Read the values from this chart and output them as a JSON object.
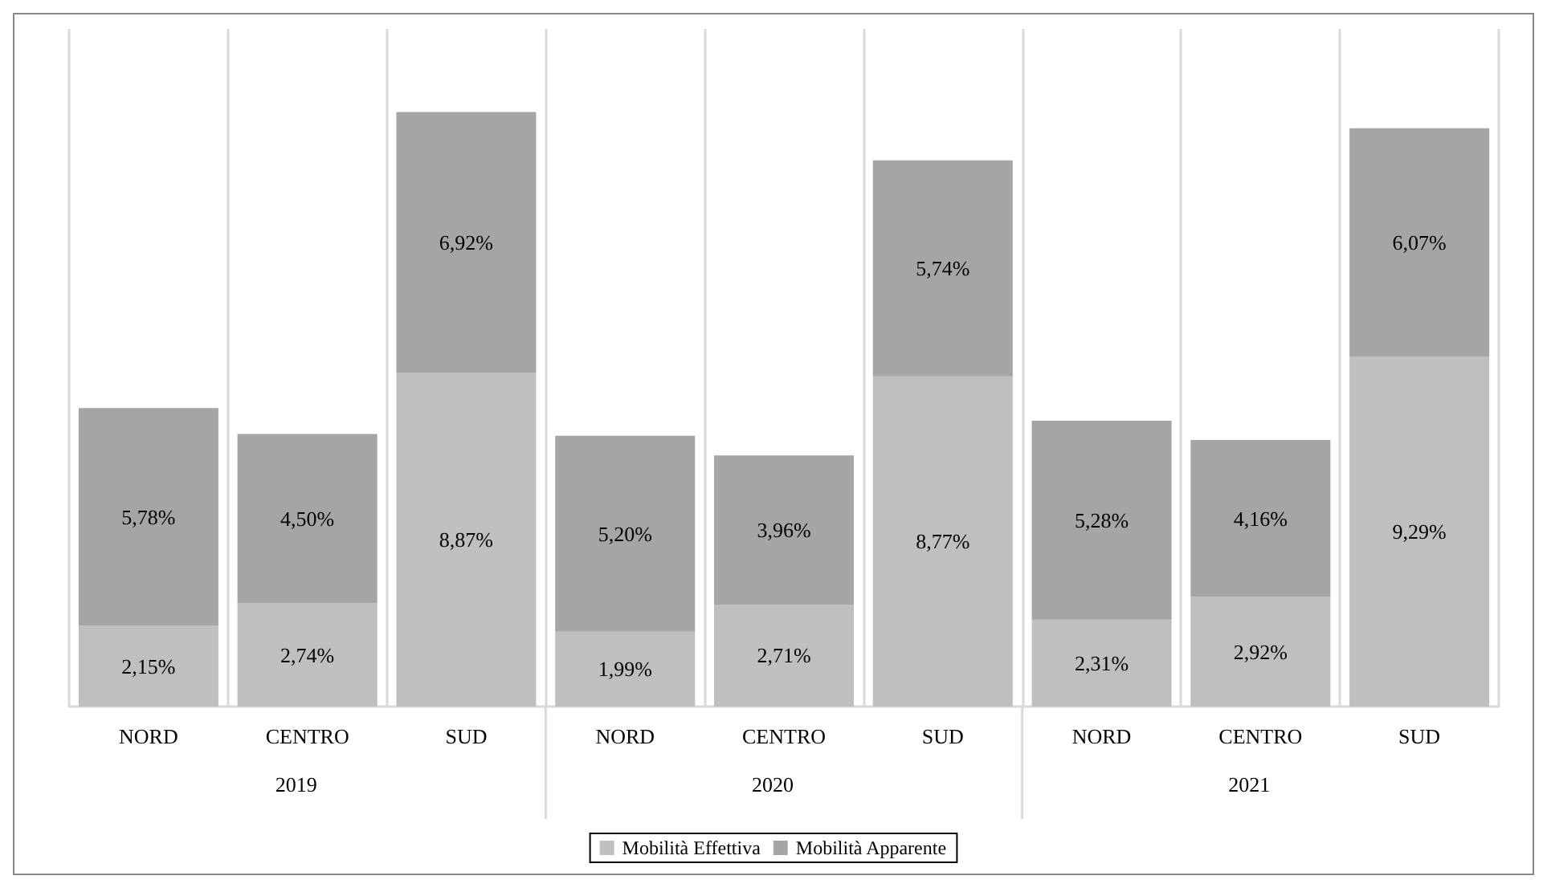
{
  "chart_data": {
    "type": "bar",
    "stacked": true,
    "categories": [
      "NORD",
      "CENTRO",
      "SUD",
      "NORD",
      "CENTRO",
      "SUD",
      "NORD",
      "CENTRO",
      "SUD"
    ],
    "series": [
      {
        "name": "Mobilità Effettiva",
        "color": "#bfbfbf",
        "values": [
          2.15,
          2.74,
          8.87,
          1.99,
          2.71,
          8.77,
          2.31,
          2.92,
          9.29
        ],
        "value_labels": [
          "2,15%",
          "2,74%",
          "8,87%",
          "1,99%",
          "2,71%",
          "8,77%",
          "2,31%",
          "2,92%",
          "9,29%"
        ]
      },
      {
        "name": "Mobilità Apparente",
        "color": "#a5a5a5",
        "values": [
          5.78,
          4.5,
          6.92,
          5.2,
          3.96,
          5.74,
          5.28,
          4.16,
          6.07
        ],
        "value_labels": [
          "5,78%",
          "4,50%",
          "6,92%",
          "5,20%",
          "3,96%",
          "5,74%",
          "5,28%",
          "4,16%",
          "6,07%"
        ]
      }
    ],
    "annotations": [
      "2019",
      "2020",
      "2021"
    ],
    "grid": "x",
    "legend": "bottom"
  }
}
